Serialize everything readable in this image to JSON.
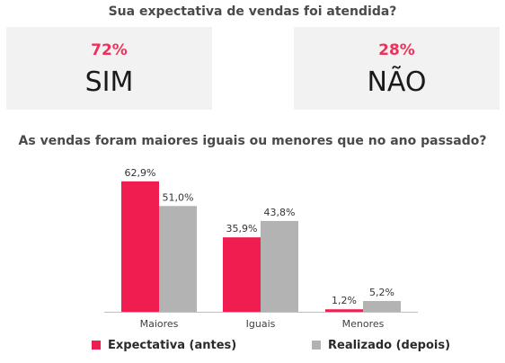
{
  "header": {
    "question1": "Sua expectativa de vendas foi atendida?",
    "question2": "As vendas foram maiores iguais ou menores que no ano passado?"
  },
  "cards": [
    {
      "percent": "72%",
      "answer": "SIM"
    },
    {
      "percent": "28%",
      "answer": "NÃO"
    }
  ],
  "colors": {
    "accent": "#f0305a",
    "antes": "#f01e50",
    "depois": "#b3b3b3",
    "axis": "#bfbfbf"
  },
  "legend": {
    "antes": "Expectativa (antes)",
    "depois": "Realizado (depois)"
  },
  "chart_data": {
    "type": "bar",
    "categories": [
      "Maiores",
      "Iguais",
      "Menores"
    ],
    "series": [
      {
        "name": "Expectativa (antes)",
        "values": [
          62.9,
          35.9,
          1.2
        ],
        "labels": [
          "62,9%",
          "35,9%",
          "1,2%"
        ]
      },
      {
        "name": "Realizado (depois)",
        "values": [
          51.0,
          43.8,
          5.2
        ],
        "labels": [
          "51,0%",
          "43,8%",
          "5,2%"
        ]
      }
    ],
    "title": "As vendas foram maiores iguais ou menores que no ano passado?",
    "ylim": [
      0,
      65
    ],
    "grid": false,
    "legend": "bottom"
  }
}
